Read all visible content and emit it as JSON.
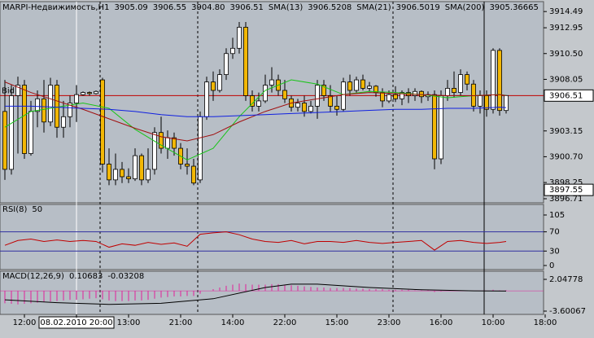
{
  "chart_data": [
    {
      "type": "candlestick",
      "title": "MARPI-Недвижимость,H1",
      "last_labels": [
        "3905.09",
        "3906.55",
        "3904.80",
        "3906.51"
      ],
      "categories": [
        null,
        null,
        null,
        "12:00",
        null,
        null,
        null,
        null,
        null,
        null,
        null,
        "08.02.2010 20:00",
        null,
        null,
        null,
        null,
        null,
        null,
        null,
        "13:00",
        null,
        null,
        null,
        null,
        null,
        null,
        null,
        "21:00",
        null,
        null,
        null,
        null,
        null,
        null,
        null,
        "14:00",
        null,
        null,
        null,
        null,
        null,
        null,
        null,
        "22:00",
        null,
        null,
        null,
        null,
        null,
        null,
        null,
        "15:00",
        null,
        null,
        null,
        null,
        null,
        null,
        null,
        "23:00",
        null,
        null,
        null,
        null,
        null,
        null,
        null,
        "16:00",
        null,
        null,
        null,
        null,
        null,
        null,
        null,
        "10:00",
        null,
        null,
        null,
        null,
        null,
        null,
        null,
        "18:00"
      ],
      "open": [
        3905,
        3899.5,
        3906.5,
        3907.5,
        3901,
        3905,
        3906.2,
        3904,
        3907.5,
        3903.5,
        3904.5,
        3905.8,
        3906.6,
        3906.8,
        3906.7,
        3908,
        3900,
        3898.5,
        3899.5,
        3898.8,
        3898.6,
        3900.8,
        3898.5,
        3899.5,
        3903,
        3901.5,
        3902.5,
        3901.5,
        3900,
        3899.8,
        3898.5,
        3904.5,
        3907.8,
        3907,
        3908.5,
        3910.5,
        3911,
        3913,
        3906.5,
        3905.5,
        3906,
        3907.5,
        3908,
        3907,
        3906.2,
        3905.4,
        3905.8,
        3905,
        3905.5,
        3907.5,
        3906.5,
        3905.5,
        3905.2,
        3907.8,
        3907,
        3908,
        3907.2,
        3907.4,
        3906.8,
        3906,
        3906.6,
        3906.2,
        3906.8,
        3906.5,
        3906.9,
        3906.4,
        3906.6,
        3900.5,
        3906.5,
        3907.2,
        3906.8,
        3908.5,
        3907.6,
        3905.5,
        3906.5,
        3905.2,
        3910.8,
        3905.09,
        null,
        null,
        null,
        null,
        null,
        null
      ],
      "high": [
        3908,
        3907.5,
        3908.3,
        3908,
        3906,
        3907,
        3908,
        3908.2,
        3908,
        3906,
        3906.5,
        3907.5,
        3906.9,
        3906.9,
        3907,
        3908.2,
        3901.5,
        3901,
        3900.2,
        3899.6,
        3901.5,
        3901,
        3901.5,
        3903.5,
        3904.5,
        3903.2,
        3903,
        3902,
        3901.5,
        3900.5,
        3905,
        3908.3,
        3908.8,
        3909,
        3911,
        3912,
        3913.5,
        3913.5,
        3907,
        3906.8,
        3908.5,
        3909.2,
        3908.5,
        3908,
        3906.5,
        3906.2,
        3906.5,
        3906,
        3908,
        3908,
        3907.5,
        3906.5,
        3908.2,
        3908.5,
        3908.3,
        3908.5,
        3907.8,
        3907.5,
        3907.2,
        3907,
        3907.4,
        3907,
        3907.2,
        3907.2,
        3907,
        3906.9,
        3907,
        3907,
        3908,
        3908.8,
        3909,
        3908.8,
        3908,
        3907,
        3907,
        3911,
        3911,
        3906.55,
        null,
        null,
        null,
        null,
        null,
        null
      ],
      "low": [
        3898.5,
        3899,
        3901,
        3900.5,
        3900.8,
        3903.5,
        3903,
        3903.6,
        3902.5,
        3902.5,
        3903.5,
        3904,
        3906.5,
        3906.5,
        3906.6,
        3899.2,
        3898,
        3898,
        3898.2,
        3898.2,
        3898.4,
        3898,
        3898.2,
        3899,
        3901,
        3900.5,
        3900.8,
        3899.5,
        3899,
        3898,
        3898.2,
        3904.2,
        3906,
        3906.8,
        3908,
        3910,
        3910.5,
        3906,
        3905,
        3905,
        3905.8,
        3906.8,
        3906.5,
        3905.8,
        3905,
        3905,
        3904.5,
        3904.8,
        3904.3,
        3906,
        3905,
        3904.6,
        3905,
        3906.5,
        3906.8,
        3907,
        3906.9,
        3906.4,
        3905.4,
        3905.8,
        3905.9,
        3905.6,
        3905.8,
        3906,
        3905.8,
        3906,
        3899.5,
        3900,
        3906,
        3906.3,
        3906.5,
        3907,
        3905,
        3904.8,
        3904.5,
        3904.8,
        3904.6,
        3904.8,
        null,
        null,
        null,
        null,
        null,
        null
      ],
      "close": [
        3899.5,
        3906.5,
        3907.5,
        3901,
        3905,
        3906.2,
        3904,
        3907.5,
        3903.5,
        3904.5,
        3905.8,
        3906.6,
        3906.8,
        3906.7,
        3906.9,
        3900,
        3898.5,
        3899.5,
        3898.8,
        3898.6,
        3900.8,
        3898.5,
        3899.5,
        3903,
        3901.5,
        3902.5,
        3901.5,
        3900,
        3899.8,
        3898.2,
        3904.5,
        3907.8,
        3907,
        3908.5,
        3910.5,
        3911,
        3913,
        3906.5,
        3905.5,
        3906,
        3907.5,
        3908,
        3907,
        3906.2,
        3905.4,
        3905.8,
        3905,
        3905.5,
        3907.5,
        3906.5,
        3905.5,
        3905.2,
        3907.8,
        3907,
        3908,
        3907.2,
        3907.4,
        3906.8,
        3906,
        3906.6,
        3906.2,
        3906.8,
        3906.5,
        3906.9,
        3906.4,
        3906.6,
        3900.5,
        3906.5,
        3907.2,
        3906.8,
        3908.5,
        3907.6,
        3905.5,
        3906.5,
        3905.2,
        3910.8,
        3905.09,
        3906.51,
        null,
        null,
        null,
        null,
        null,
        null
      ],
      "up_color": "#ffffff",
      "down_color": "#f2b705",
      "series": [
        {
          "name": "SMA(13)",
          "color": "#19c419",
          "x": [
            0,
            4,
            8,
            12,
            16,
            20,
            24,
            28,
            32,
            36,
            40,
            44,
            48,
            52,
            56,
            60,
            64,
            68,
            72,
            76,
            77
          ],
          "values": [
            3903.5,
            3905.0,
            3905.4,
            3905.8,
            3905.3,
            3903.3,
            3901.8,
            3900.4,
            3901.5,
            3904.5,
            3907.0,
            3908.0,
            3907.6,
            3906.6,
            3906.9,
            3906.8,
            3906.6,
            3906.3,
            3906.5,
            3906.6,
            3906.5208
          ]
        },
        {
          "name": "SMA(21)",
          "color": "#a01010",
          "x": [
            0,
            4,
            8,
            12,
            16,
            20,
            24,
            28,
            32,
            36,
            40,
            44,
            48,
            52,
            56,
            60,
            64,
            68,
            72,
            76,
            77
          ],
          "values": [
            3907.8,
            3906.8,
            3906.0,
            3905.2,
            3904.3,
            3903.4,
            3902.6,
            3902.2,
            3902.8,
            3904.0,
            3905.0,
            3905.8,
            3906.2,
            3906.6,
            3906.8,
            3906.7,
            3906.6,
            3906.5,
            3906.5,
            3906.6,
            3906.5019
          ]
        },
        {
          "name": "SMA(200)",
          "color": "#1020e0",
          "x": [
            0,
            4,
            8,
            12,
            16,
            20,
            24,
            28,
            32,
            36,
            40,
            44,
            48,
            52,
            56,
            60,
            64,
            68,
            72,
            76,
            77
          ],
          "values": [
            3905.5,
            3905.5,
            3905.4,
            3905.3,
            3905.2,
            3905.0,
            3904.7,
            3904.5,
            3904.5,
            3904.6,
            3904.7,
            3904.8,
            3904.9,
            3905.0,
            3905.1,
            3905.2,
            3905.2,
            3905.3,
            3905.3,
            3905.4,
            3905.36665
          ]
        }
      ],
      "bid": {
        "name": "Bid",
        "value": 3906.51,
        "color": "#c00000"
      },
      "cursor_price": 3897.55,
      "ylim": [
        3896.4,
        3915.2
      ],
      "yticks": [
        3914.49,
        3912.95,
        {
          "value": 3910.5,
          "label": "3910.50"
        },
        3908.05,
        3903.15,
        {
          "value": 3900.7,
          "label": "3900.70"
        },
        3898.25,
        3896.71
      ]
    },
    {
      "type": "line",
      "title": "RSI(8)",
      "color": "#c00000",
      "x": [
        0,
        2,
        4,
        6,
        8,
        10,
        12,
        14,
        16,
        18,
        20,
        22,
        24,
        26,
        28,
        30,
        32,
        34,
        36,
        38,
        40,
        42,
        44,
        46,
        48,
        50,
        52,
        54,
        56,
        58,
        60,
        62,
        64,
        66,
        68,
        70,
        72,
        74,
        76,
        77
      ],
      "values": [
        42,
        52,
        55,
        50,
        53,
        50,
        52,
        50,
        38,
        45,
        42,
        48,
        44,
        47,
        40,
        65,
        68,
        70,
        64,
        55,
        50,
        48,
        52,
        45,
        50,
        50,
        48,
        52,
        48,
        46,
        48,
        50,
        52,
        32,
        50,
        52,
        48,
        46,
        48,
        50
      ],
      "levels": [
        70,
        30
      ],
      "level_color": "#3030a0",
      "ylim": [
        -6.8,
        123.6
      ],
      "yticks": [
        105,
        70,
        30,
        0
      ]
    },
    {
      "type": "bar",
      "title": "MACD(12,26,9)",
      "color": "#e0209a",
      "values": [
        -2.2,
        -2.3,
        -2.4,
        -2.3,
        -2.2,
        -2.1,
        -2.0,
        -1.9,
        -1.8,
        -1.7,
        -1.6,
        -1.6,
        -1.5,
        -1.4,
        -1.3,
        -1.5,
        -1.7,
        -1.8,
        -1.8,
        -1.8,
        -1.7,
        -1.7,
        -1.6,
        -1.4,
        -1.2,
        -1.1,
        -1.0,
        -1.0,
        -0.9,
        -0.9,
        -0.5,
        0.0,
        0.3,
        0.6,
        0.9,
        1.1,
        1.3,
        1.2,
        1.1,
        1.1,
        1.1,
        1.2,
        1.2,
        1.1,
        1.0,
        0.9,
        0.8,
        0.7,
        0.6,
        0.6,
        0.5,
        0.5,
        0.5,
        0.5,
        0.4,
        0.4,
        0.3,
        0.3,
        0.3,
        0.2,
        0.2,
        0.2,
        0.2,
        0.1,
        0.1,
        0.1,
        -0.2,
        -0.1,
        0.0,
        0.1,
        0.1,
        0.1,
        0.0,
        0.0,
        0.0,
        0.2,
        0.1,
        0.10683
      ],
      "signal": {
        "color": "#000000",
        "x": [
          0,
          8,
          16,
          24,
          32,
          40,
          44,
          48,
          56,
          64,
          72,
          77
        ],
        "values": [
          -1.6,
          -2.1,
          -2.4,
          -2.2,
          -1.4,
          0.6,
          1.2,
          1.2,
          0.6,
          0.2,
          0.0,
          -0.03208
        ]
      },
      "ylim": [
        -4.18,
        3.35
      ],
      "yticks": [
        2.04778,
        -3.60067
      ]
    }
  ]
}
